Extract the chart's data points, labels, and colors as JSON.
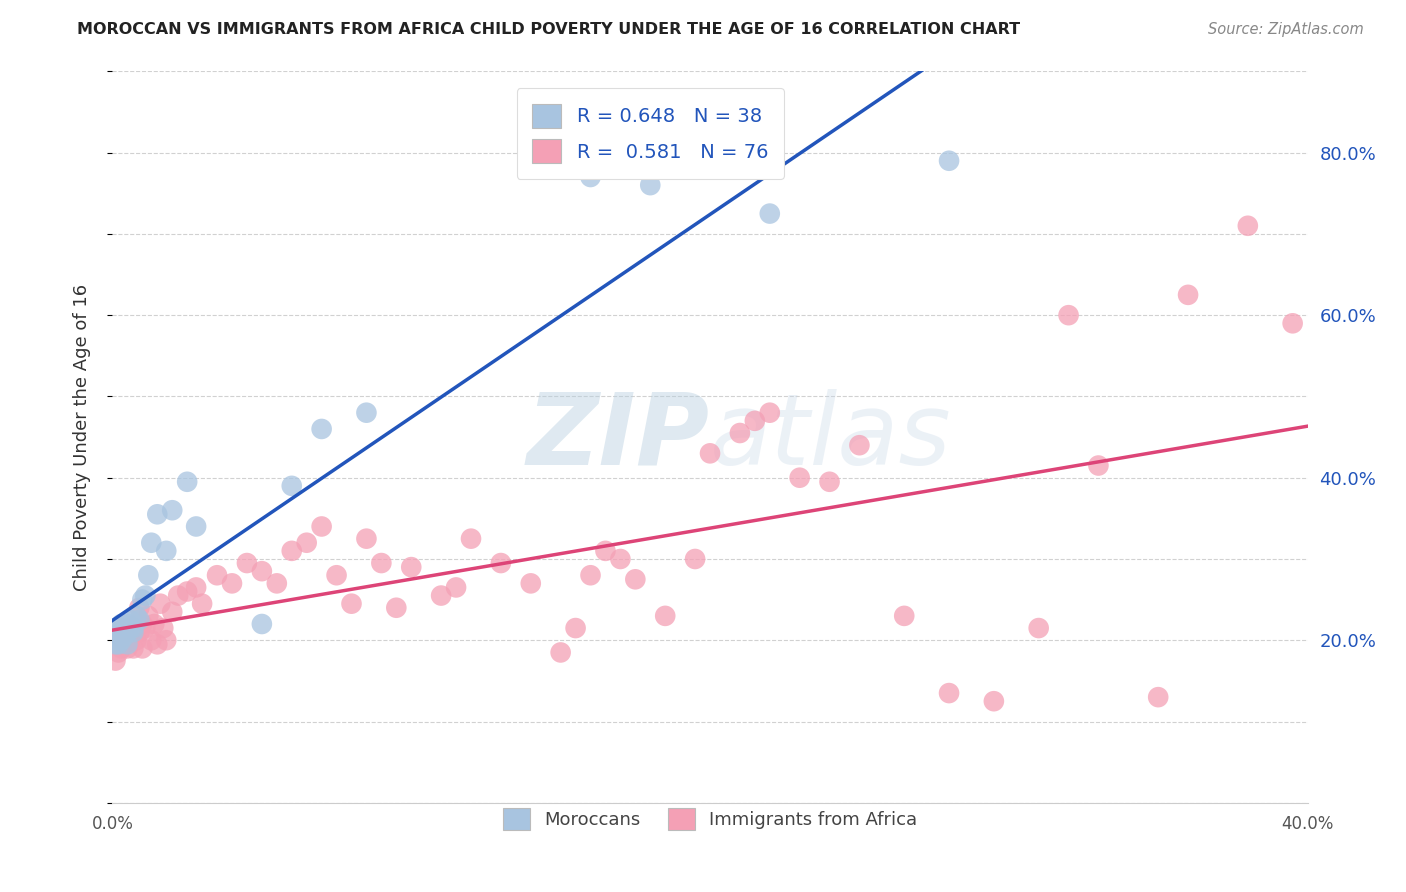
{
  "title": "MOROCCAN VS IMMIGRANTS FROM AFRICA CHILD POVERTY UNDER THE AGE OF 16 CORRELATION CHART",
  "source": "Source: ZipAtlas.com",
  "ylabel": "Child Poverty Under the Age of 16",
  "xlim": [
    0.0,
    0.4
  ],
  "ylim": [
    0.0,
    0.9
  ],
  "yticks": [
    0.2,
    0.4,
    0.6,
    0.8
  ],
  "ytick_labels": [
    "20.0%",
    "40.0%",
    "60.0%",
    "80.0%"
  ],
  "xticks": [
    0.0,
    0.05,
    0.1,
    0.15,
    0.2,
    0.25,
    0.3,
    0.35,
    0.4
  ],
  "xtick_labels": [
    "0.0%",
    "",
    "",
    "",
    "",
    "",
    "",
    "",
    "40.0%"
  ],
  "moroccan_color": "#a8c4e0",
  "africa_color": "#f4a0b5",
  "moroccan_line_color": "#2255bb",
  "africa_line_color": "#dd4477",
  "moroccan_R": 0.648,
  "moroccan_N": 38,
  "africa_R": 0.581,
  "africa_N": 76,
  "watermark": "ZIPatlas",
  "moroccan_x": [
    0.001,
    0.001,
    0.001,
    0.001,
    0.002,
    0.002,
    0.002,
    0.003,
    0.003,
    0.003,
    0.004,
    0.004,
    0.005,
    0.005,
    0.005,
    0.006,
    0.006,
    0.007,
    0.007,
    0.008,
    0.009,
    0.01,
    0.011,
    0.012,
    0.013,
    0.015,
    0.018,
    0.02,
    0.025,
    0.028,
    0.05,
    0.06,
    0.07,
    0.085,
    0.16,
    0.18,
    0.22,
    0.28
  ],
  "moroccan_y": [
    0.195,
    0.2,
    0.205,
    0.21,
    0.195,
    0.205,
    0.21,
    0.2,
    0.215,
    0.22,
    0.205,
    0.215,
    0.21,
    0.22,
    0.195,
    0.215,
    0.225,
    0.215,
    0.21,
    0.23,
    0.225,
    0.25,
    0.255,
    0.28,
    0.32,
    0.355,
    0.31,
    0.36,
    0.395,
    0.34,
    0.22,
    0.39,
    0.46,
    0.48,
    0.77,
    0.76,
    0.725,
    0.79
  ],
  "africa_x": [
    0.001,
    0.002,
    0.002,
    0.003,
    0.003,
    0.004,
    0.004,
    0.005,
    0.005,
    0.006,
    0.006,
    0.007,
    0.007,
    0.008,
    0.008,
    0.009,
    0.009,
    0.01,
    0.01,
    0.011,
    0.012,
    0.013,
    0.014,
    0.015,
    0.016,
    0.017,
    0.018,
    0.02,
    0.022,
    0.025,
    0.028,
    0.03,
    0.035,
    0.04,
    0.045,
    0.05,
    0.055,
    0.06,
    0.065,
    0.07,
    0.075,
    0.08,
    0.085,
    0.09,
    0.095,
    0.1,
    0.11,
    0.115,
    0.12,
    0.13,
    0.14,
    0.15,
    0.155,
    0.16,
    0.165,
    0.17,
    0.175,
    0.185,
    0.195,
    0.2,
    0.21,
    0.215,
    0.22,
    0.23,
    0.24,
    0.25,
    0.265,
    0.28,
    0.295,
    0.31,
    0.32,
    0.33,
    0.35,
    0.36,
    0.38,
    0.395
  ],
  "africa_y": [
    0.175,
    0.185,
    0.2,
    0.19,
    0.21,
    0.195,
    0.215,
    0.19,
    0.21,
    0.2,
    0.215,
    0.19,
    0.21,
    0.2,
    0.22,
    0.24,
    0.21,
    0.22,
    0.19,
    0.215,
    0.23,
    0.2,
    0.22,
    0.195,
    0.245,
    0.215,
    0.2,
    0.235,
    0.255,
    0.26,
    0.265,
    0.245,
    0.28,
    0.27,
    0.295,
    0.285,
    0.27,
    0.31,
    0.32,
    0.34,
    0.28,
    0.245,
    0.325,
    0.295,
    0.24,
    0.29,
    0.255,
    0.265,
    0.325,
    0.295,
    0.27,
    0.185,
    0.215,
    0.28,
    0.31,
    0.3,
    0.275,
    0.23,
    0.3,
    0.43,
    0.455,
    0.47,
    0.48,
    0.4,
    0.395,
    0.44,
    0.23,
    0.135,
    0.125,
    0.215,
    0.6,
    0.415,
    0.13,
    0.625,
    0.71,
    0.59
  ]
}
